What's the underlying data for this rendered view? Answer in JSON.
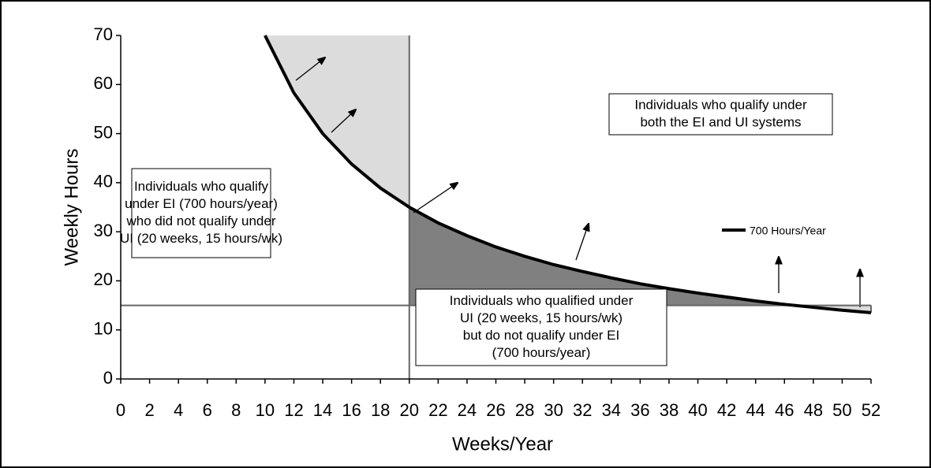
{
  "chart_data": {
    "type": "line",
    "xlabel": "Weeks/Year",
    "ylabel": "Weekly Hours",
    "xlim": [
      0,
      52
    ],
    "xticks": [
      0,
      2,
      4,
      6,
      8,
      10,
      12,
      14,
      16,
      18,
      20,
      22,
      24,
      26,
      28,
      30,
      32,
      34,
      36,
      38,
      40,
      42,
      44,
      46,
      48,
      50,
      52
    ],
    "ylim": [
      0,
      70
    ],
    "yticks": [
      0,
      10,
      20,
      30,
      40,
      50,
      60,
      70
    ],
    "x": [
      10,
      12,
      14,
      16,
      18,
      20,
      22,
      24,
      26,
      28,
      30,
      32,
      34,
      36,
      38,
      40,
      42,
      44,
      46,
      48,
      50,
      52
    ],
    "series": [
      {
        "name": "700 Hours/Year",
        "color": "#000000",
        "values": [
          70,
          58.3,
          50,
          43.8,
          38.9,
          35,
          31.8,
          29.2,
          26.9,
          25,
          23.3,
          21.9,
          20.6,
          19.4,
          18.4,
          17.5,
          16.7,
          15.9,
          15.2,
          14.6,
          14,
          13.5
        ]
      }
    ],
    "vline": 20,
    "hline": 15,
    "legend": "right",
    "annotations": [
      [
        "Individuals who qualify",
        "under EI (700 hours/year)",
        "who did not qualify under",
        "UI (20 weeks, 15 hours/wk)"
      ],
      [
        "Individuals who qualify under",
        "both the EI and UI systems"
      ],
      [
        "Individuals who qualified under",
        "UI (20 weeks, 15 hours/wk)",
        "but do not qualify under EI",
        "(700 hours/year)"
      ]
    ]
  }
}
